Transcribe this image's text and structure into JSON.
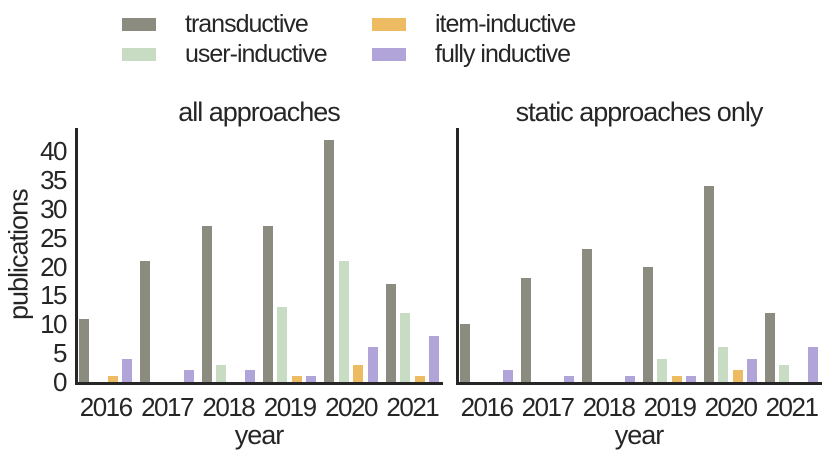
{
  "legend": {
    "items": [
      {
        "label": "transductive",
        "color": "#8C8B80"
      },
      {
        "label": "user-inductive",
        "color": "#C7DCC2"
      },
      {
        "label": "item-inductive",
        "color": "#ECBB62"
      },
      {
        "label": "fully inductive",
        "color": "#B1A4D9"
      }
    ]
  },
  "ylabel": "publications",
  "colors": {
    "axis": "#262626",
    "transductive": "#8C8B80",
    "user_inductive": "#C7DCC2",
    "item_inductive": "#ECBB62",
    "fully_inductive": "#B1A4D9"
  },
  "chart_data": [
    {
      "type": "bar",
      "title": "all approaches",
      "xlabel": "year",
      "ylabel": "publications",
      "categories": [
        "2016",
        "2017",
        "2018",
        "2019",
        "2020",
        "2021"
      ],
      "series": [
        {
          "name": "transductive",
          "color": "#8C8B80",
          "values": [
            11,
            21,
            27,
            27,
            42,
            17
          ]
        },
        {
          "name": "user-inductive",
          "color": "#C7DCC2",
          "values": [
            0,
            0,
            3,
            13,
            21,
            12
          ]
        },
        {
          "name": "item-inductive",
          "color": "#ECBB62",
          "values": [
            1,
            0,
            0,
            1,
            3,
            1
          ]
        },
        {
          "name": "fully inductive",
          "color": "#B1A4D9",
          "values": [
            4,
            2,
            2,
            1,
            6,
            8
          ]
        }
      ],
      "y_ticks": [
        0,
        5,
        10,
        15,
        20,
        25,
        30,
        35,
        40
      ],
      "ylim": [
        0,
        44
      ],
      "y_tick_labels_visible": true,
      "grid": false,
      "legend_position": "top"
    },
    {
      "type": "bar",
      "title": "static approaches only",
      "xlabel": "year",
      "ylabel": "publications",
      "categories": [
        "2016",
        "2017",
        "2018",
        "2019",
        "2020",
        "2021"
      ],
      "series": [
        {
          "name": "transductive",
          "color": "#8C8B80",
          "values": [
            10,
            18,
            23,
            20,
            34,
            12
          ]
        },
        {
          "name": "user-inductive",
          "color": "#C7DCC2",
          "values": [
            0,
            0,
            0,
            4,
            6,
            3
          ]
        },
        {
          "name": "item-inductive",
          "color": "#ECBB62",
          "values": [
            0,
            0,
            0,
            1,
            2,
            0
          ]
        },
        {
          "name": "fully inductive",
          "color": "#B1A4D9",
          "values": [
            2,
            1,
            1,
            1,
            4,
            6
          ]
        }
      ],
      "y_ticks": [
        0,
        5,
        10,
        15,
        20,
        25,
        30,
        35,
        40
      ],
      "ylim": [
        0,
        44
      ],
      "y_tick_labels_visible": false,
      "grid": false,
      "legend_position": "top"
    }
  ]
}
